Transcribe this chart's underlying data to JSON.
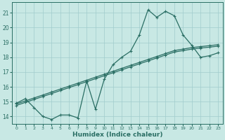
{
  "xlabel": "Humidex (Indice chaleur)",
  "xlim": [
    -0.5,
    23.5
  ],
  "ylim": [
    13.5,
    21.7
  ],
  "yticks": [
    14,
    15,
    16,
    17,
    18,
    19,
    20,
    21
  ],
  "xticks": [
    0,
    1,
    2,
    3,
    4,
    5,
    6,
    7,
    8,
    9,
    10,
    11,
    12,
    13,
    14,
    15,
    16,
    17,
    18,
    19,
    20,
    21,
    22,
    23
  ],
  "line_color": "#2a6e64",
  "bg_color": "#c8e8e4",
  "grid_color": "#a0cccc",
  "zigzag_x": [
    0,
    1,
    2,
    3,
    4,
    5,
    6,
    7,
    8,
    9,
    10,
    11,
    12,
    13,
    14,
    15,
    16,
    17,
    18,
    19,
    20,
    21,
    22,
    23
  ],
  "zigzag_y": [
    14.9,
    15.2,
    14.6,
    14.0,
    13.8,
    14.1,
    14.1,
    13.9,
    16.4,
    14.5,
    16.5,
    17.5,
    18.0,
    18.4,
    19.5,
    21.2,
    20.7,
    21.1,
    20.8,
    19.5,
    18.8,
    18.0,
    18.1,
    18.3
  ],
  "diag1_x": [
    0,
    1,
    2,
    3,
    4,
    5,
    6,
    7,
    8,
    9,
    10,
    11,
    12,
    13,
    14,
    15,
    16,
    17,
    18,
    19,
    20,
    21,
    22,
    23
  ],
  "diag1_y": [
    14.85,
    15.05,
    15.25,
    15.45,
    15.65,
    15.85,
    16.05,
    16.25,
    16.45,
    16.65,
    16.85,
    17.05,
    17.25,
    17.45,
    17.65,
    17.85,
    18.05,
    18.25,
    18.45,
    18.55,
    18.65,
    18.72,
    18.78,
    18.85
  ],
  "diag2_x": [
    0,
    1,
    2,
    3,
    4,
    5,
    6,
    7,
    8,
    9,
    10,
    11,
    12,
    13,
    14,
    15,
    16,
    17,
    18,
    19,
    20,
    21,
    22,
    23
  ],
  "diag2_y": [
    14.75,
    14.95,
    15.15,
    15.35,
    15.55,
    15.75,
    15.95,
    16.15,
    16.35,
    16.55,
    16.75,
    16.95,
    17.15,
    17.35,
    17.55,
    17.75,
    17.95,
    18.15,
    18.35,
    18.45,
    18.55,
    18.62,
    18.68,
    18.75
  ]
}
